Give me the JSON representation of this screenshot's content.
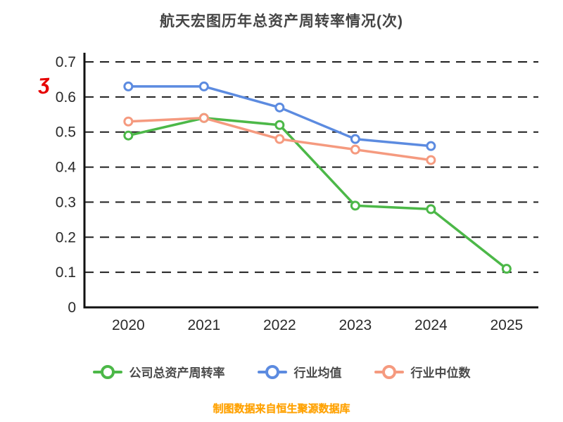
{
  "title": "航天宏图历年总资产周转率情况(次)",
  "annotation": "ʒ",
  "footer": "制图数据来自恒生聚源数据库",
  "colors": {
    "company": "#4cb848",
    "industry_avg": "#5c8be0",
    "industry_median": "#f59a7f",
    "footer_text": "#ffa200",
    "grid": "#1f1f1f",
    "axis": "#111111",
    "tick_label": "#2a2a2a",
    "title_text": "#454545",
    "annotation_red": "#e60000"
  },
  "chart_data": {
    "type": "line",
    "categories": [
      "2020",
      "2021",
      "2022",
      "2023",
      "2024",
      "2025"
    ],
    "series": [
      {
        "name": "公司总资产周转率",
        "color": "#4cb848",
        "values": [
          0.49,
          0.54,
          0.52,
          0.29,
          0.28,
          0.11
        ]
      },
      {
        "name": "行业均值",
        "color": "#5c8be0",
        "values": [
          0.63,
          0.63,
          0.57,
          0.48,
          0.46,
          null
        ]
      },
      {
        "name": "行业中位数",
        "color": "#f59a7f",
        "values": [
          0.53,
          0.54,
          0.48,
          0.45,
          0.42,
          null
        ]
      }
    ],
    "title": "航天宏图历年总资产周转率情况(次)",
    "xlabel": "",
    "ylabel": "",
    "ylim": [
      0,
      0.7
    ],
    "yticks": [
      0,
      0.1,
      0.2,
      0.3,
      0.4,
      0.5,
      0.6,
      0.7
    ],
    "grid": "dashed-horizontal",
    "legend_position": "bottom",
    "marker": "open-circle"
  }
}
